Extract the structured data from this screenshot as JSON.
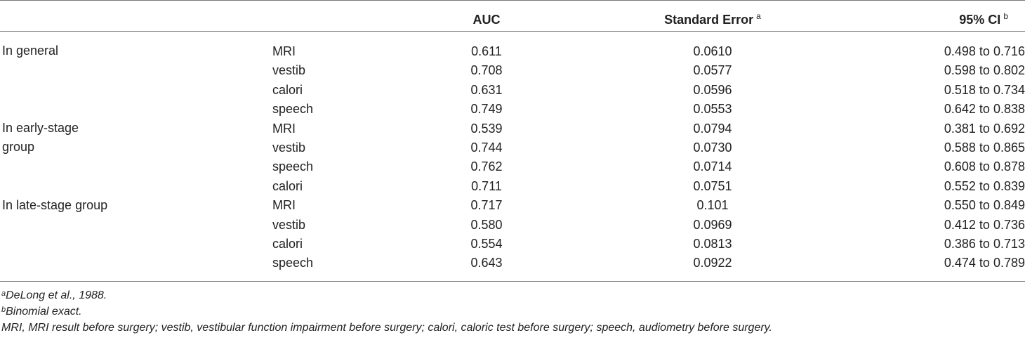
{
  "header": {
    "col_auc": "AUC",
    "col_se": "Standard Error",
    "col_se_sup": "a",
    "col_ci": "95% CI",
    "col_ci_sup": "b"
  },
  "groups": [
    {
      "label_line1": "In general",
      "label_line2": ""
    },
    {
      "label_line1": "In early-stage",
      "label_line2": "group"
    },
    {
      "label_line1": "In late-stage group",
      "label_line2": ""
    }
  ],
  "rows": [
    {
      "method": "MRI",
      "auc": "0.611",
      "se": "0.0610",
      "ci": "0.498 to 0.716"
    },
    {
      "method": "vestib",
      "auc": "0.708",
      "se": "0.0577",
      "ci": "0.598 to 0.802"
    },
    {
      "method": "calori",
      "auc": "0.631",
      "se": "0.0596",
      "ci": "0.518 to 0.734"
    },
    {
      "method": "speech",
      "auc": "0.749",
      "se": "0.0553",
      "ci": "0.642 to 0.838"
    },
    {
      "method": "MRI",
      "auc": "0.539",
      "se": "0.0794",
      "ci": "0.381 to 0.692"
    },
    {
      "method": "vestib",
      "auc": "0.744",
      "se": "0.0730",
      "ci": "0.588 to 0.865"
    },
    {
      "method": "speech",
      "auc": "0.762",
      "se": "0.0714",
      "ci": "0.608 to 0.878"
    },
    {
      "method": "calori",
      "auc": "0.711",
      "se": "0.0751",
      "ci": "0.552 to 0.839"
    },
    {
      "method": "MRI",
      "auc": "0.717",
      "se": "0.101",
      "ci": "0.550 to 0.849"
    },
    {
      "method": "vestib",
      "auc": "0.580",
      "se": "0.0969",
      "ci": "0.412 to 0.736"
    },
    {
      "method": "calori",
      "auc": "0.554",
      "se": "0.0813",
      "ci": "0.386 to 0.713"
    },
    {
      "method": "speech",
      "auc": "0.643",
      "se": "0.0922",
      "ci": "0.474 to 0.789"
    }
  ],
  "notes": {
    "a_sup": "a",
    "a_text": "DeLong et al., 1988.",
    "b_sup": "b",
    "b_text": "Binomial exact.",
    "abbrev": "MRI, MRI result before surgery; vestib, vestibular function impairment before surgery; calori, caloric test before surgery; speech, audiometry before surgery."
  }
}
